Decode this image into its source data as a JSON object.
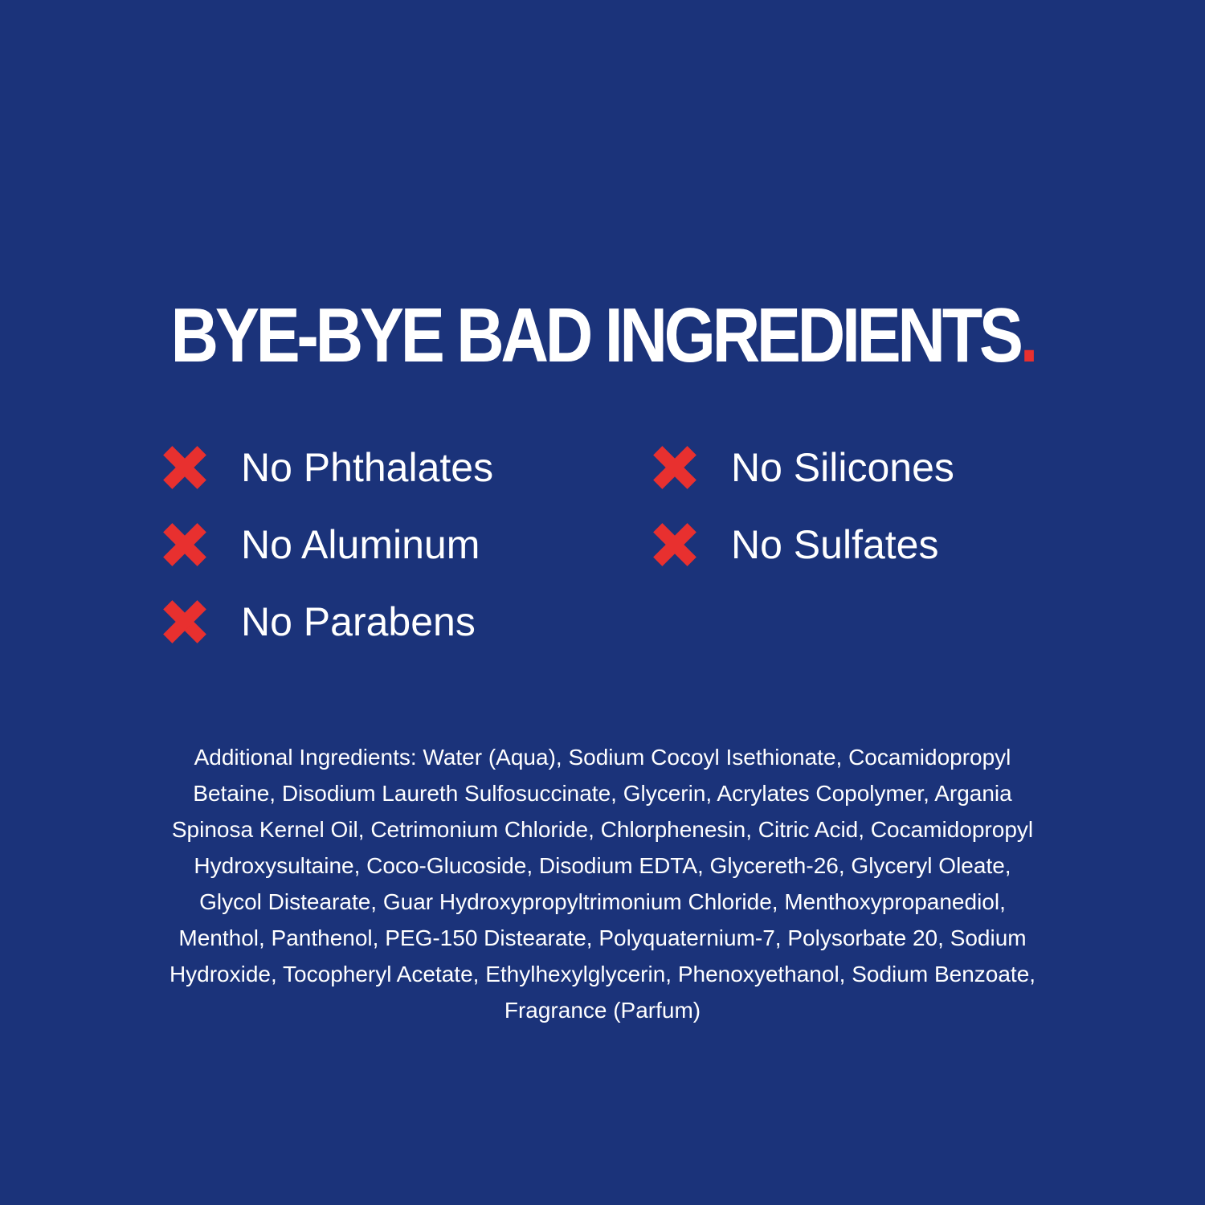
{
  "title": {
    "text": "BYE-BYE BAD INGREDIENTS",
    "dot": "."
  },
  "colors": {
    "background": "#1b337a",
    "accent": "#e8302f",
    "text": "#ffffff"
  },
  "claims": [
    {
      "label": "No Phthalates",
      "icon": "x-mark-icon"
    },
    {
      "label": "No Aluminum",
      "icon": "x-mark-icon"
    },
    {
      "label": "No Parabens",
      "icon": "x-mark-icon"
    },
    {
      "label": "No Silicones",
      "icon": "x-mark-icon"
    },
    {
      "label": "No Sulfates",
      "icon": "x-mark-icon"
    }
  ],
  "ingredients_lines": [
    "Additional Ingredients: Water (Aqua), Sodium Cocoyl Isethionate, Cocamidopropyl",
    "Betaine, Disodium Laureth Sulfosuccinate, Glycerin, Acrylates Copolymer, Argania",
    "Spinosa Kernel Oil, Cetrimonium Chloride, Chlorphenesin, Citric Acid, Cocamidopropyl",
    "Hydroxysultaine, Coco-Glucoside, Disodium EDTA, Glycereth-26, Glyceryl Oleate,",
    "Glycol Distearate, Guar Hydroxypropyltrimonium Chloride, Menthoxypropanediol,",
    "Menthol, Panthenol, PEG-150 Distearate, Polyquaternium-7, Polysorbate 20, Sodium",
    "Hydroxide, Tocopheryl Acetate, Ethylhexylglycerin, Phenoxyethanol, Sodium Benzoate,",
    "Fragrance (Parfum)"
  ]
}
